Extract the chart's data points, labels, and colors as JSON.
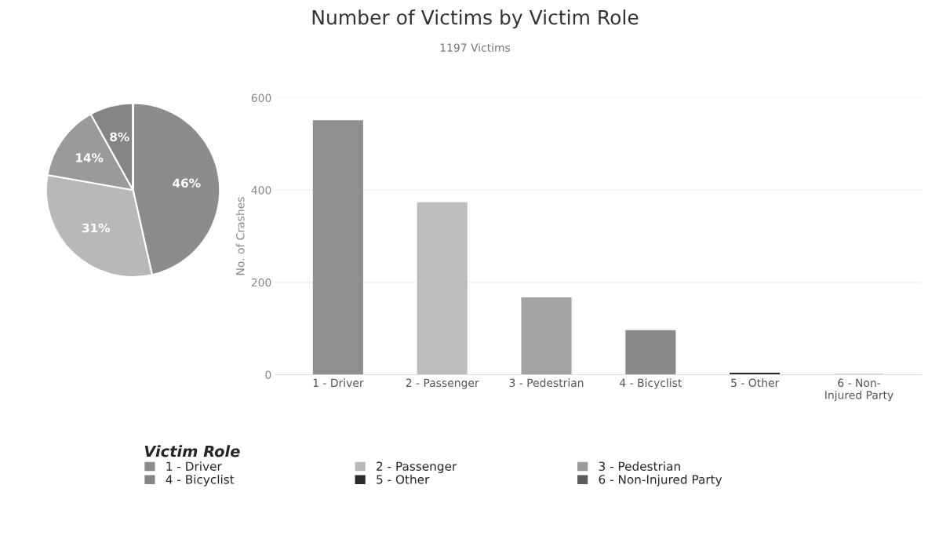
{
  "chart_data": [
    {
      "type": "pie",
      "legend_title": "Victim Role",
      "legend": "bottom",
      "categories": [
        "1 - Driver",
        "2 - Passenger",
        "3 - Pedestrian",
        "4 - Bicyclist",
        "5 - Other",
        "6 - Non-Injured Party"
      ],
      "values": [
        46,
        31,
        14,
        8,
        0,
        0
      ],
      "colors": [
        "#8c8c8c",
        "#b8b8b8",
        "#9a9a9a",
        "#858585",
        "#2a2a2a",
        "#5a5a5a"
      ],
      "value_labels": [
        "46%",
        "31%",
        "14%",
        "8%",
        null,
        null
      ]
    },
    {
      "type": "bar",
      "title": "Number of Victims by Victim Role",
      "subtitle": "1197 Victims",
      "ylabel": "No. of Crashes",
      "categories": [
        "1 - Driver",
        "2 - Passenger",
        "3 - Pedestrian",
        "4 - Bicyclist",
        "5 - Other",
        "6 - Non-\nInjured Party"
      ],
      "values": [
        550,
        372,
        166,
        95,
        3,
        0
      ],
      "colors": [
        "#8f8f8f",
        "#bdbdbd",
        "#a3a3a3",
        "#8a8a8a",
        "#2a2a2a",
        "#5a5a5a"
      ],
      "ylim": [
        0,
        600
      ],
      "yticks": [
        0,
        200,
        400,
        600
      ],
      "grid": "y"
    }
  ]
}
